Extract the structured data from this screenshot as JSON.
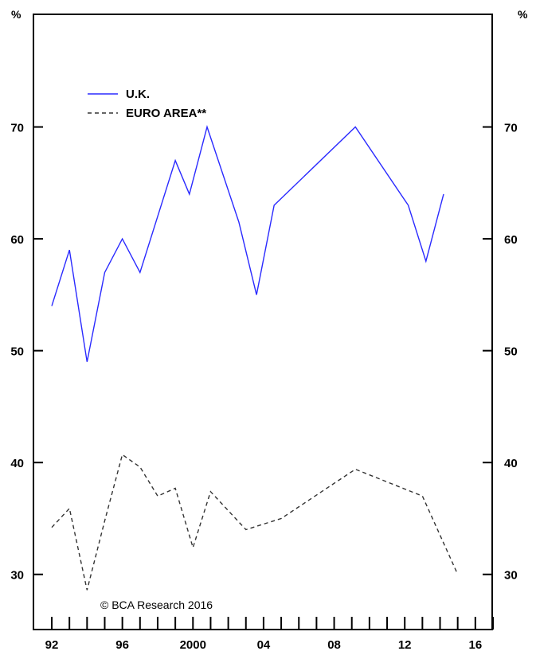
{
  "chart_data": {
    "type": "line",
    "title": "",
    "xlabel": "",
    "ylabel": "",
    "y_unit": "%",
    "ylim": [
      25,
      80
    ],
    "xlim": [
      1992,
      2017
    ],
    "yticks": [
      30,
      40,
      50,
      60,
      70
    ],
    "ytick_labels": [
      "30",
      "40",
      "50",
      "60",
      "70"
    ],
    "xtick_positions": [
      1992,
      1996,
      2000,
      2004,
      2008,
      2012,
      2016
    ],
    "xtick_labels": [
      "92",
      "96",
      "2000",
      "04",
      "08",
      "12",
      "16"
    ],
    "minor_xticks": [
      1992,
      1993,
      1994,
      1995,
      1996,
      1997,
      1998,
      1999,
      2000,
      2001,
      2002,
      2003,
      2004,
      2005,
      2006,
      2007,
      2008,
      2009,
      2010,
      2011,
      2012,
      2013,
      2014,
      2015,
      2016,
      2017
    ],
    "grid": false,
    "legend_position": "top-left",
    "annotation": "© BCA Research 2016",
    "series": [
      {
        "name": "U.K.",
        "color": "#2a2aff",
        "dash": "solid",
        "x": [
          1992,
          1993,
          1994,
          1995,
          1996,
          1997,
          1999,
          1999.8,
          2000.8,
          2002.6,
          2003.6,
          2004.6,
          2009.2,
          2012.2,
          2013.2,
          2014.2
        ],
        "y": [
          54,
          59,
          49,
          57,
          60,
          57,
          67,
          64,
          70,
          61.5,
          55,
          63,
          70,
          63,
          58,
          64
        ]
      },
      {
        "name": "EURO AREA**",
        "color": "#333333",
        "dash": "dashed",
        "x": [
          1992,
          1993,
          1994,
          1995,
          1996,
          1997,
          1998,
          1999,
          2000,
          2001,
          2003,
          2005,
          2009.2,
          2013,
          2015
        ],
        "y": [
          34.2,
          35.9,
          28.6,
          34.8,
          40.7,
          39.6,
          37,
          37.7,
          32.4,
          37.4,
          34,
          35,
          39.4,
          37,
          30
        ]
      }
    ]
  }
}
